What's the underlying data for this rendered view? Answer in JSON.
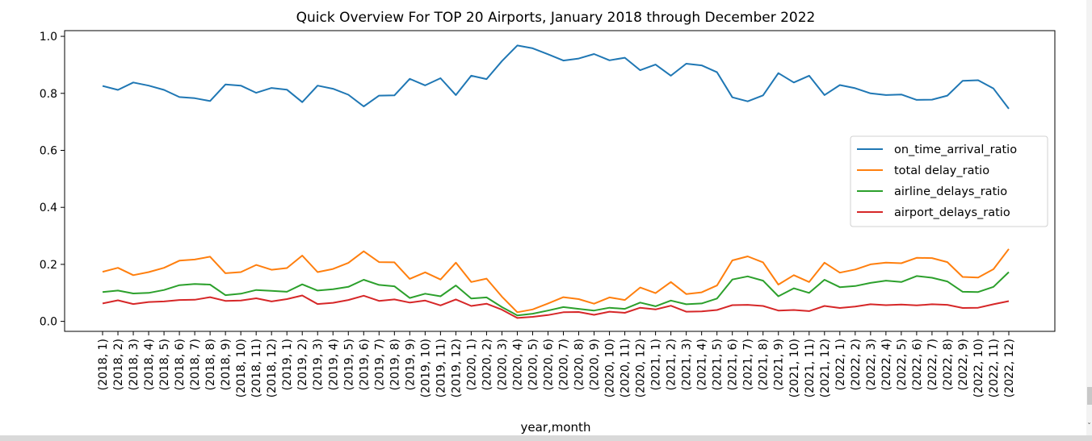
{
  "chart_data": {
    "type": "line",
    "title": "Quick Overview For TOP 20 Airports, January 2018 through December 2022",
    "xlabel": "year,month",
    "ylabel": "",
    "ylim": [
      -0.035,
      1.02
    ],
    "yticks": [
      "0.0",
      "0.2",
      "0.4",
      "0.6",
      "0.8",
      "1.0"
    ],
    "legend_position": "center-right",
    "grid": false,
    "categories": [
      "(2018, 1)",
      "(2018, 2)",
      "(2018, 3)",
      "(2018, 4)",
      "(2018, 5)",
      "(2018, 6)",
      "(2018, 7)",
      "(2018, 8)",
      "(2018, 9)",
      "(2018, 10)",
      "(2018, 11)",
      "(2018, 12)",
      "(2019, 1)",
      "(2019, 2)",
      "(2019, 3)",
      "(2019, 4)",
      "(2019, 5)",
      "(2019, 6)",
      "(2019, 7)",
      "(2019, 8)",
      "(2019, 9)",
      "(2019, 10)",
      "(2019, 11)",
      "(2019, 12)",
      "(2020, 1)",
      "(2020, 2)",
      "(2020, 3)",
      "(2020, 4)",
      "(2020, 5)",
      "(2020, 6)",
      "(2020, 7)",
      "(2020, 8)",
      "(2020, 9)",
      "(2020, 10)",
      "(2020, 11)",
      "(2020, 12)",
      "(2021, 1)",
      "(2021, 2)",
      "(2021, 3)",
      "(2021, 4)",
      "(2021, 5)",
      "(2021, 6)",
      "(2021, 7)",
      "(2021, 8)",
      "(2021, 9)",
      "(2021, 10)",
      "(2021, 11)",
      "(2021, 12)",
      "(2022, 1)",
      "(2022, 2)",
      "(2022, 3)",
      "(2022, 4)",
      "(2022, 5)",
      "(2022, 6)",
      "(2022, 7)",
      "(2022, 8)",
      "(2022, 9)",
      "(2022, 10)",
      "(2022, 11)",
      "(2022, 12)"
    ],
    "series": [
      {
        "name": "on_time_arrival_ratio",
        "color": "#1f77b4",
        "values": [
          0.826,
          0.812,
          0.838,
          0.827,
          0.812,
          0.787,
          0.783,
          0.773,
          0.831,
          0.827,
          0.802,
          0.819,
          0.813,
          0.769,
          0.827,
          0.816,
          0.795,
          0.754,
          0.792,
          0.793,
          0.851,
          0.828,
          0.853,
          0.794,
          0.862,
          0.85,
          0.913,
          0.968,
          0.958,
          0.937,
          0.915,
          0.922,
          0.938,
          0.916,
          0.925,
          0.881,
          0.901,
          0.862,
          0.904,
          0.898,
          0.874,
          0.786,
          0.772,
          0.793,
          0.871,
          0.838,
          0.862,
          0.794,
          0.829,
          0.818,
          0.8,
          0.794,
          0.796,
          0.777,
          0.778,
          0.792,
          0.844,
          0.846,
          0.817,
          0.746
        ]
      },
      {
        "name": "total delay_ratio",
        "color": "#ff7f0e",
        "values": [
          0.174,
          0.188,
          0.162,
          0.173,
          0.188,
          0.213,
          0.217,
          0.227,
          0.169,
          0.173,
          0.198,
          0.181,
          0.187,
          0.231,
          0.173,
          0.184,
          0.205,
          0.246,
          0.208,
          0.207,
          0.149,
          0.172,
          0.147,
          0.206,
          0.138,
          0.15,
          0.087,
          0.032,
          0.042,
          0.063,
          0.085,
          0.078,
          0.062,
          0.084,
          0.075,
          0.119,
          0.099,
          0.138,
          0.096,
          0.102,
          0.126,
          0.214,
          0.228,
          0.207,
          0.129,
          0.162,
          0.138,
          0.206,
          0.171,
          0.182,
          0.2,
          0.206,
          0.204,
          0.223,
          0.222,
          0.208,
          0.156,
          0.154,
          0.183,
          0.254
        ]
      },
      {
        "name": "airline_delays_ratio",
        "color": "#2ca02c",
        "values": [
          0.103,
          0.108,
          0.098,
          0.1,
          0.11,
          0.127,
          0.131,
          0.129,
          0.092,
          0.097,
          0.11,
          0.107,
          0.104,
          0.13,
          0.108,
          0.113,
          0.121,
          0.146,
          0.128,
          0.123,
          0.082,
          0.097,
          0.088,
          0.126,
          0.08,
          0.084,
          0.05,
          0.021,
          0.027,
          0.038,
          0.05,
          0.044,
          0.038,
          0.048,
          0.044,
          0.066,
          0.053,
          0.073,
          0.06,
          0.063,
          0.08,
          0.147,
          0.158,
          0.143,
          0.088,
          0.116,
          0.1,
          0.146,
          0.12,
          0.124,
          0.135,
          0.143,
          0.138,
          0.159,
          0.153,
          0.14,
          0.104,
          0.103,
          0.121,
          0.173
        ]
      },
      {
        "name": "airport_delays_ratio",
        "color": "#d62728",
        "values": [
          0.063,
          0.074,
          0.061,
          0.068,
          0.07,
          0.075,
          0.076,
          0.085,
          0.072,
          0.073,
          0.081,
          0.07,
          0.078,
          0.091,
          0.061,
          0.065,
          0.075,
          0.09,
          0.072,
          0.077,
          0.066,
          0.073,
          0.056,
          0.077,
          0.054,
          0.062,
          0.041,
          0.012,
          0.016,
          0.022,
          0.032,
          0.033,
          0.023,
          0.034,
          0.03,
          0.048,
          0.042,
          0.055,
          0.034,
          0.035,
          0.04,
          0.057,
          0.058,
          0.054,
          0.038,
          0.04,
          0.036,
          0.054,
          0.047,
          0.052,
          0.06,
          0.057,
          0.059,
          0.056,
          0.06,
          0.058,
          0.047,
          0.048,
          0.06,
          0.071
        ]
      }
    ]
  }
}
